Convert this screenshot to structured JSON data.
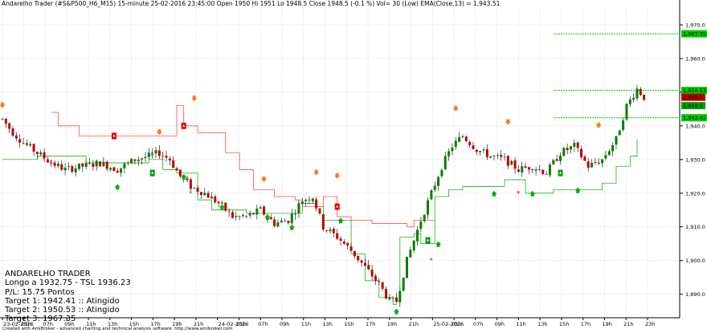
{
  "header": {
    "text": "Andarelho Trader (#S&P500_H6_M15) 15-minute  25-02-2016 23:45:00   Open 1950  Hi 1951  Lo 1948.5  Close 1948.5  (-0.1 %)  Vol= 30 (Low)  EMA(Close,13) = 1,943.51"
  },
  "info": {
    "title": "ANDARELHO TRADER",
    "line1": "Longo a 1932.75 - TSL 1936.23",
    "line2": " P/L: 15.75 Pontos",
    "line3": "Target 1: 1942.41 :: Atingido",
    "line4": "Target 2: 1950.53 :: Atingido",
    "line5": "Target 3: 1967.35"
  },
  "footer": {
    "text": "Created with AmiBroker - advanced charting and technical analysis software. http://www.amibroker.com"
  },
  "chart_data": {
    "type": "candlestick",
    "ylim": [
      1883,
      1975
    ],
    "y_ticks": [
      "1,970.0",
      "1,960.0",
      "1,950.0",
      "1,940.0",
      "1,930.0",
      "1,920.0",
      "1,910.0",
      "1,900.0",
      "1,890.0"
    ],
    "y_tick_values": [
      1970,
      1960,
      1950,
      1940,
      1930,
      1920,
      1910,
      1900,
      1890
    ],
    "x_ticks": [
      "23-02-2016",
      "05h",
      "07h",
      "09h",
      "11h",
      "13h",
      "15h",
      "17h",
      "19h",
      "21h",
      "24-02-2016",
      "05h",
      "07h",
      "09h",
      "11h",
      "13h",
      "15h",
      "17h",
      "19h",
      "21h",
      "25-02-2016",
      "05h",
      "07h",
      "09h",
      "11h",
      "13h",
      "15h",
      "17h",
      "19h",
      "21h",
      "23h"
    ],
    "targets": [
      {
        "label": "1,967.35",
        "value": 1967.35,
        "color": "#00c800"
      },
      {
        "label": "1,950.53",
        "value": 1950.53,
        "color": "#00c800"
      },
      {
        "label": "1,942.41",
        "value": 1942.41,
        "color": "#00c800"
      }
    ],
    "price_labels": [
      {
        "label": "1,948.5",
        "value": 1948.5,
        "color": "#c00000"
      },
      {
        "label": "1,948.5",
        "value": 1947.2,
        "color": "#00a000"
      }
    ],
    "candle_anchors": [
      [
        0,
        1942
      ],
      [
        3,
        1938
      ],
      [
        6,
        1935
      ],
      [
        10,
        1932
      ],
      [
        14,
        1929
      ],
      [
        18,
        1927
      ],
      [
        23,
        1928
      ],
      [
        28,
        1929
      ],
      [
        33,
        1927
      ],
      [
        38,
        1930
      ],
      [
        42,
        1931
      ],
      [
        45,
        1932
      ],
      [
        48,
        1930
      ],
      [
        51,
        1925
      ],
      [
        54,
        1922
      ],
      [
        58,
        1920
      ],
      [
        62,
        1917
      ],
      [
        66,
        1913
      ],
      [
        70,
        1913
      ],
      [
        74,
        1915
      ],
      [
        78,
        1911
      ],
      [
        82,
        1912
      ],
      [
        86,
        1918
      ],
      [
        89,
        1919
      ],
      [
        92,
        1910
      ],
      [
        96,
        1907
      ],
      [
        100,
        1903
      ],
      [
        104,
        1898
      ],
      [
        108,
        1893
      ],
      [
        111,
        1888
      ],
      [
        113,
        1888
      ],
      [
        116,
        1900
      ],
      [
        120,
        1912
      ],
      [
        123,
        1920
      ],
      [
        126,
        1928
      ],
      [
        129,
        1934
      ],
      [
        132,
        1937
      ],
      [
        136,
        1933
      ],
      [
        140,
        1931
      ],
      [
        144,
        1930
      ],
      [
        148,
        1927
      ],
      [
        152,
        1928
      ],
      [
        156,
        1926
      ],
      [
        160,
        1932
      ],
      [
        164,
        1934
      ],
      [
        168,
        1928
      ],
      [
        172,
        1930
      ],
      [
        176,
        1936
      ],
      [
        179,
        1946
      ],
      [
        182,
        1951
      ],
      [
        184,
        1948.5
      ]
    ],
    "green_stop": [
      [
        0,
        1930
      ],
      [
        10,
        1931
      ],
      [
        24,
        1929
      ],
      [
        42,
        1930
      ],
      [
        46,
        1927
      ],
      [
        50,
        1926
      ],
      [
        56,
        1918
      ],
      [
        60,
        1915
      ],
      [
        70,
        1914
      ],
      [
        84,
        1914
      ],
      [
        86,
        1917
      ],
      [
        90,
        1916
      ],
      [
        92,
        1912
      ],
      [
        100,
        1902
      ],
      [
        104,
        1894
      ],
      [
        108,
        1889
      ],
      [
        112,
        1887
      ],
      [
        113,
        1888
      ],
      [
        114,
        1907
      ],
      [
        118,
        1908
      ],
      [
        120,
        1905
      ],
      [
        124,
        1919
      ],
      [
        128,
        1921
      ],
      [
        132,
        1922
      ],
      [
        140,
        1922
      ],
      [
        144,
        1924
      ],
      [
        150,
        1920
      ],
      [
        158,
        1921
      ],
      [
        164,
        1921
      ],
      [
        172,
        1923
      ],
      [
        176,
        1928
      ],
      [
        180,
        1931
      ],
      [
        182,
        1936
      ]
    ],
    "red_stop": [
      [
        14,
        1944
      ],
      [
        16,
        1940
      ],
      [
        22,
        1937
      ],
      [
        42,
        1937
      ],
      [
        50,
        1946
      ],
      [
        52,
        1940
      ],
      [
        56,
        1938
      ],
      [
        64,
        1932
      ],
      [
        68,
        1927
      ],
      [
        72,
        1921
      ],
      [
        78,
        1919
      ],
      [
        84,
        1918
      ],
      [
        86,
        1916
      ],
      [
        92,
        1919
      ],
      [
        96,
        1913
      ],
      [
        100,
        1912
      ],
      [
        106,
        1911
      ],
      [
        112,
        1911
      ],
      [
        116,
        1910
      ],
      [
        118,
        1912
      ],
      [
        124,
        1912
      ]
    ]
  }
}
